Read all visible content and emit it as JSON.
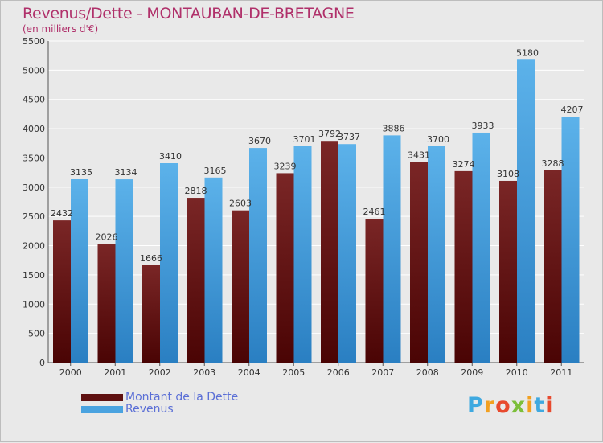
{
  "title": "Revenus/Dette - MONTAUBAN-DE-BRETAGNE",
  "subtitle": "(en milliers d'€)",
  "logo": {
    "letters": [
      "P",
      "r",
      "o",
      "x",
      "i",
      "t",
      "i"
    ],
    "colors": [
      "#3fa9e0",
      "#f2a020",
      "#e84a2e",
      "#7cbf3a",
      "#f2a020",
      "#3fa9e0",
      "#e84a2e"
    ]
  },
  "colors": {
    "dette": "#6e1a1a",
    "dette_dark": "#4a0606",
    "revenus": "#57aee8",
    "revenus_dark": "#2a7fc2",
    "grid": "#ffffff",
    "title": "#b0306a",
    "legend_text": "#5b6fd6"
  },
  "chart_data": {
    "type": "bar",
    "title": "Revenus/Dette - MONTAUBAN-DE-BRETAGNE",
    "subtitle": "(en milliers d'€)",
    "xlabel": "",
    "ylabel": "",
    "categories": [
      "2000",
      "2001",
      "2002",
      "2003",
      "2004",
      "2005",
      "2006",
      "2007",
      "2008",
      "2009",
      "2010",
      "2011"
    ],
    "series": [
      {
        "name": "Montant de la Dette",
        "values": [
          2432,
          2026,
          1666,
          2818,
          2603,
          3239,
          3792,
          2461,
          3431,
          3274,
          3108,
          3288
        ],
        "labels": [
          "2432",
          "2026",
          "1666",
          "2818",
          "2603",
          "3239",
          "3792",
          "2461",
          "3431",
          "3274",
          "3108",
          "3288"
        ]
      },
      {
        "name": "Revenus",
        "values": [
          3135,
          3134,
          3410,
          3165,
          3670,
          3701,
          3737,
          3886,
          3700,
          3933,
          5180,
          4207
        ],
        "labels": [
          "3135",
          "3134",
          "3410",
          "3165",
          "3670",
          "3701",
          "3737",
          "3886",
          "3700",
          "3933",
          "5180",
          "4207"
        ]
      }
    ],
    "ylim": [
      0,
      5500
    ],
    "yticks": [
      "0",
      "500",
      "1000",
      "1500",
      "2000",
      "2500",
      "3000",
      "3500",
      "4000",
      "4500",
      "5000",
      "5500"
    ],
    "grid": true,
    "legend": "bottom-left"
  }
}
